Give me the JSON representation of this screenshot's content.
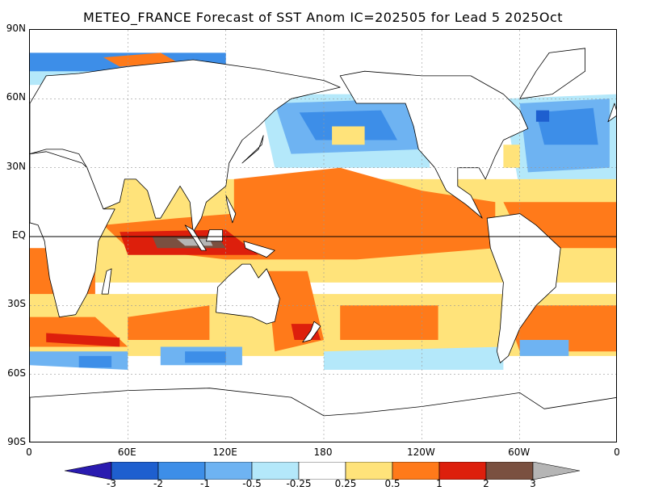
{
  "title": "METEO_FRANCE Forecast of SST Anom IC=202505 for Lead 5 2025Oct",
  "lat_ticks": [
    {
      "label": "90N",
      "lat": 90
    },
    {
      "label": "60N",
      "lat": 60
    },
    {
      "label": "30N",
      "lat": 30
    },
    {
      "label": "EQ",
      "lat": 0
    },
    {
      "label": "30S",
      "lat": -30
    },
    {
      "label": "60S",
      "lat": -60
    },
    {
      "label": "90S",
      "lat": -90
    }
  ],
  "lon_ticks": [
    {
      "label": "0",
      "lon": 0
    },
    {
      "label": "60E",
      "lon": 60
    },
    {
      "label": "120E",
      "lon": 120
    },
    {
      "label": "180",
      "lon": 180
    },
    {
      "label": "120W",
      "lon": 240
    },
    {
      "label": "60W",
      "lon": 300
    },
    {
      "label": "0",
      "lon": 360
    }
  ],
  "colorbar": {
    "labels": [
      "-3",
      "-2",
      "-1",
      "-0.5",
      "-0.25",
      "0.25",
      "0.5",
      "1",
      "2",
      "3"
    ],
    "colors": [
      "#2a1bb0",
      "#1e5fcf",
      "#3d8ee8",
      "#6eb3f2",
      "#b4e8fa",
      "#ffffff",
      "#ffe37a",
      "#ff7a1a",
      "#dd1f0c",
      "#7a5040",
      "#b5b5b5"
    ]
  },
  "colors": {
    "land": "#ffffff",
    "coast": "#000000",
    "equator_line": "#000000"
  }
}
